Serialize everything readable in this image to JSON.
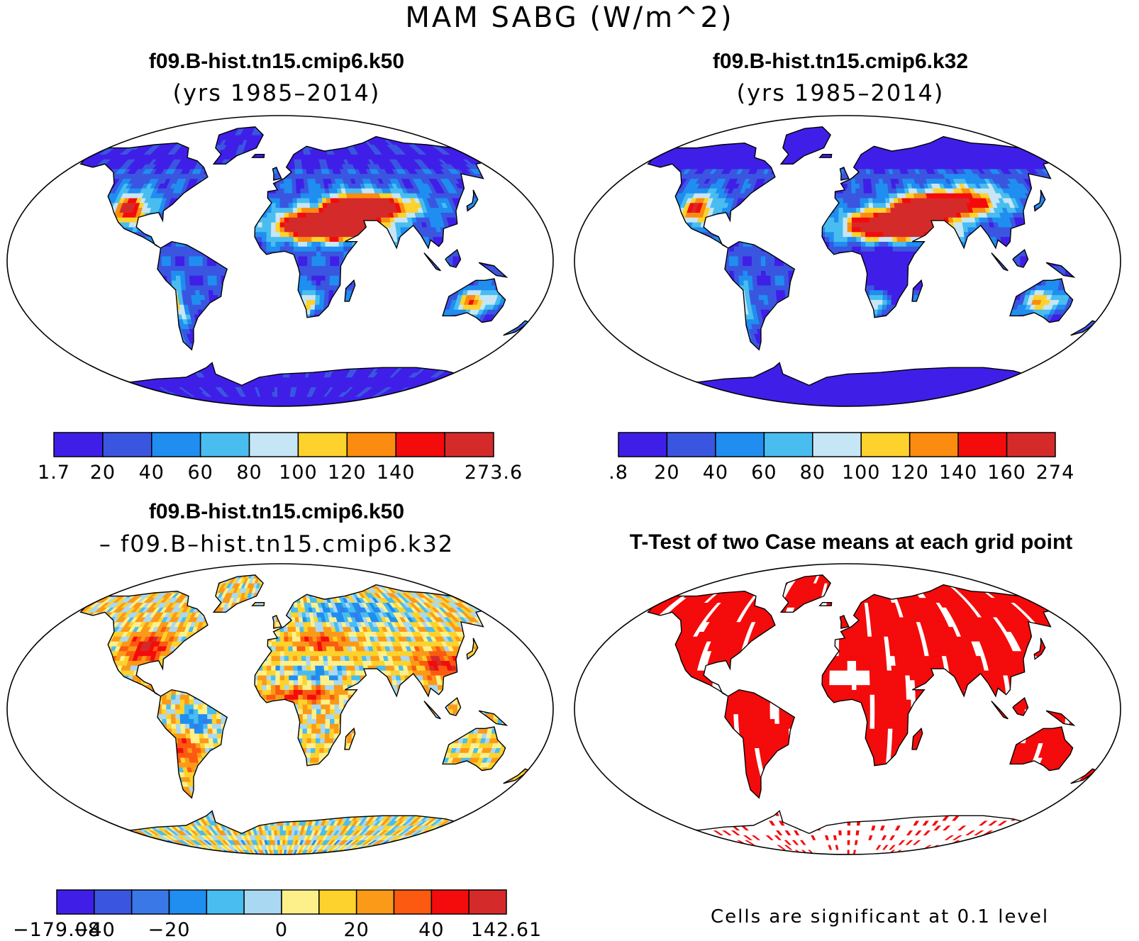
{
  "title": "MAM SABG (W/m^2)",
  "panels": [
    {
      "title": "f09.B-hist.tn15.cmip6.k50",
      "subtitle": "(yrs 1985–2014)"
    },
    {
      "title": "f09.B-hist.tn15.cmip6.k32",
      "subtitle": "(yrs 1985–2014)"
    },
    {
      "title": "f09.B-hist.tn15.cmip6.k50",
      "subtitle": "– f09.B–hist.tn15.cmip6.k32"
    },
    {
      "title": "T-Test of two Case means at each grid point",
      "subtitle": ""
    }
  ],
  "colorbars": [
    {
      "colors": [
        "#3f1fe8",
        "#3a56e0",
        "#1f8ef0",
        "#49bdf0",
        "#c6e6f6",
        "#fdd22c",
        "#fb8c10",
        "#f40b0b",
        "#d52a2a"
      ],
      "labels": [
        "1.7",
        "20",
        "40",
        "60",
        "80",
        "100",
        "120",
        "140",
        "273.6"
      ]
    },
    {
      "colors": [
        "#3f1fe8",
        "#3a56e0",
        "#1f8ef0",
        "#49bdf0",
        "#c6e6f6",
        "#fdd22c",
        "#fb8c10",
        "#f40b0b",
        "#d52a2a"
      ],
      "labels": [
        ".8",
        "20",
        "40",
        "60",
        "80",
        "100",
        "120",
        "140",
        "160",
        "274"
      ]
    },
    {
      "colors": [
        "#3f1fe8",
        "#3a56e0",
        "#3a78e8",
        "#1f8ef0",
        "#49bdf0",
        "#a9d8f2",
        "#fdf08a",
        "#fdd22c",
        "#fb9a18",
        "#fb5a10",
        "#f40b0b",
        "#d52a2a"
      ],
      "labels": [
        "−179.08",
        "−40",
        "−20",
        "0",
        "20",
        "40",
        "142.61"
      ]
    }
  ],
  "ttest_note": "Cells are significant at 0.1 level",
  "colors": {
    "ocean": "#ffffff",
    "significant": "#f40b0b",
    "coastline": "#000000"
  }
}
